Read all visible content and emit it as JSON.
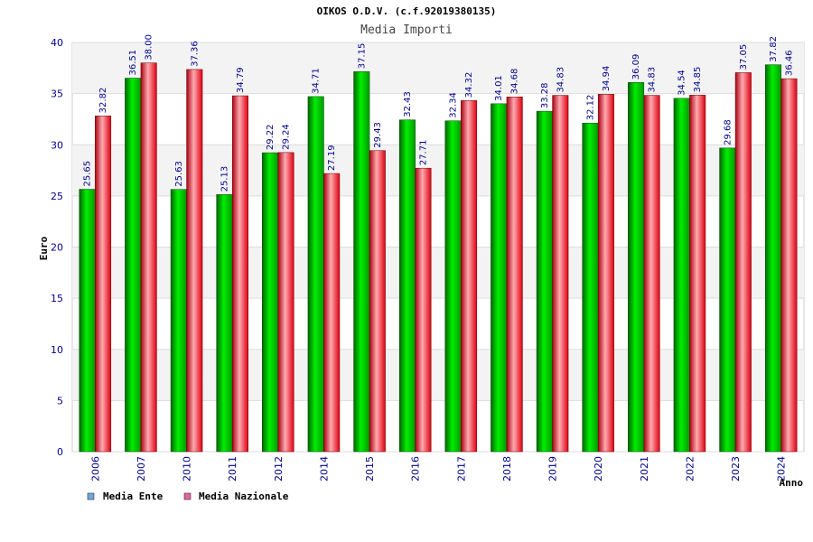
{
  "chart_data": {
    "type": "bar",
    "title": "OIKOS O.D.V. (c.f.92019380135)",
    "subtitle": "Media Importi",
    "xlabel": "Anno",
    "ylabel": "Euro",
    "ylim": [
      0,
      40
    ],
    "yticks": [
      0,
      5,
      10,
      15,
      20,
      25,
      30,
      35,
      40
    ],
    "grid": true,
    "legend_position": "bottom-left",
    "categories": [
      "2006",
      "2007",
      "2010",
      "2011",
      "2012",
      "2014",
      "2015",
      "2016",
      "2017",
      "2018",
      "2019",
      "2020",
      "2021",
      "2022",
      "2023",
      "2024"
    ],
    "series": [
      {
        "name": "Media Ente",
        "legend_color": "#6fa8dc",
        "bar_color": "#00cc00",
        "values": [
          25.65,
          36.51,
          25.63,
          25.13,
          29.22,
          34.71,
          37.15,
          32.43,
          32.34,
          34.01,
          33.28,
          32.12,
          36.09,
          34.54,
          29.68,
          37.82
        ],
        "labels": [
          "25.65",
          "36.51",
          "25.63",
          "25.13",
          "29.22",
          "34.71",
          "37.15",
          "32.43",
          "32.34",
          "34.01",
          "33.28",
          "32.12",
          "36.09",
          "34.54",
          "29.68",
          "37.82"
        ]
      },
      {
        "name": "Media Nazionale",
        "legend_color": "#e06699",
        "bar_color": "#ee1122",
        "values": [
          32.82,
          38.0,
          37.36,
          34.79,
          29.24,
          27.19,
          29.43,
          27.71,
          34.32,
          34.68,
          34.83,
          34.94,
          34.83,
          34.85,
          37.05,
          36.46
        ],
        "labels": [
          "32.82",
          "38.00",
          "37.36",
          "34.79",
          "29.24",
          "27.19",
          "29.43",
          "27.71",
          "34.32",
          "34.68",
          "34.83",
          "34.94",
          "34.83",
          "34.85",
          "37.05",
          "36.46"
        ]
      }
    ]
  }
}
